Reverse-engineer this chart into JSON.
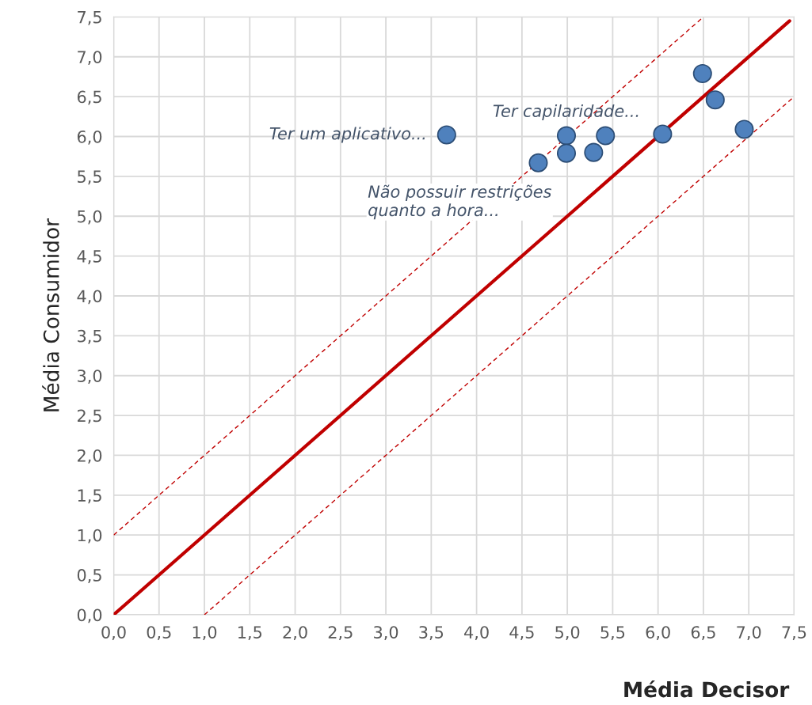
{
  "chart_data": {
    "type": "scatter",
    "xlabel": "Média Decisor",
    "ylabel": "Média Consumidor",
    "xlim": [
      0,
      7.5
    ],
    "ylim": [
      0,
      7.5
    ],
    "xticks": [
      {
        "value": 0,
        "label": "0,0"
      },
      {
        "value": 0.5,
        "label": "0,5"
      },
      {
        "value": 1,
        "label": "1,0"
      },
      {
        "value": 1.5,
        "label": "1,5"
      },
      {
        "value": 2,
        "label": "2,0"
      },
      {
        "value": 2.5,
        "label": "2,5"
      },
      {
        "value": 3,
        "label": "3,0"
      },
      {
        "value": 3.5,
        "label": "3,5"
      },
      {
        "value": 4,
        "label": "4,0"
      },
      {
        "value": 4.5,
        "label": "4,5"
      },
      {
        "value": 5,
        "label": "5,0"
      },
      {
        "value": 5.5,
        "label": "5,5"
      },
      {
        "value": 6,
        "label": "6,0"
      },
      {
        "value": 6.5,
        "label": "6,5"
      },
      {
        "value": 7,
        "label": "7,0"
      },
      {
        "value": 7.5,
        "label": "7,5"
      }
    ],
    "yticks": [
      {
        "value": 0,
        "label": "0,0"
      },
      {
        "value": 0.5,
        "label": "0,5"
      },
      {
        "value": 1,
        "label": "1,0"
      },
      {
        "value": 1.5,
        "label": "1,5"
      },
      {
        "value": 2,
        "label": "2,0"
      },
      {
        "value": 2.5,
        "label": "2,5"
      },
      {
        "value": 3,
        "label": "3,0"
      },
      {
        "value": 3.5,
        "label": "3,5"
      },
      {
        "value": 4,
        "label": "4,0"
      },
      {
        "value": 4.5,
        "label": "4,5"
      },
      {
        "value": 5,
        "label": "5,0"
      },
      {
        "value": 5.5,
        "label": "5,5"
      },
      {
        "value": 6,
        "label": "6,0"
      },
      {
        "value": 6.5,
        "label": "6,5"
      },
      {
        "value": 7,
        "label": "7,0"
      },
      {
        "value": 7.5,
        "label": "7,5"
      }
    ],
    "grid": true,
    "legend": false,
    "marker": "circle",
    "series": [
      {
        "color": "#4f81bd",
        "x": [
          3.67,
          4.68,
          4.99,
          4.99,
          5.29,
          5.42,
          6.05,
          6.49,
          6.63,
          6.95
        ],
        "values": [
          6.02,
          5.67,
          6.01,
          5.79,
          5.8,
          6.01,
          6.03,
          6.79,
          6.46,
          6.09
        ]
      },
      {
        "type": "line",
        "color": "#c00000",
        "line_style": "solid",
        "marker": "none",
        "x": [
          0,
          7.45
        ],
        "values": [
          0,
          7.45
        ]
      },
      {
        "type": "line",
        "color": "#c00000",
        "line_style": "dashed",
        "marker": "none",
        "x": [
          0,
          6.5
        ],
        "values": [
          1,
          7.5
        ]
      },
      {
        "type": "line",
        "color": "#c00000",
        "line_style": "dashed",
        "marker": "none",
        "x": [
          1,
          7.5
        ],
        "values": [
          0,
          6.5
        ]
      }
    ],
    "annotations": [
      {
        "text": "Ter um aplicativo...",
        "x": 3.67,
        "y": 6.02
      },
      {
        "text": "Ter capilaridade...",
        "x": 4.99,
        "y": 6.01
      },
      {
        "text": "Não possuir restrições\nquanto a hora...",
        "x": 4.68,
        "y": 5.67
      }
    ]
  }
}
